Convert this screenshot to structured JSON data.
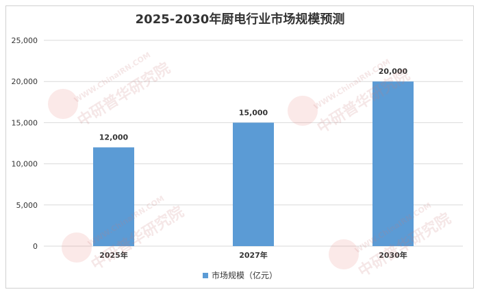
{
  "chart_data": {
    "type": "bar",
    "title": "2025-2030年厨电行业市场规模预测",
    "categories": [
      "2025年",
      "2027年",
      "2030年"
    ],
    "series": [
      {
        "name": "市场规模（亿元）",
        "values": [
          12000,
          15000,
          20000
        ],
        "color": "#5b9bd5"
      }
    ],
    "data_labels": [
      "12,000",
      "15,000",
      "20,000"
    ],
    "yticks": [
      "0",
      "5,000",
      "10,000",
      "15,000",
      "20,000",
      "25,000"
    ],
    "ylim": [
      0,
      25000
    ],
    "grid": true,
    "legend_position": "bottom"
  },
  "watermark": {
    "brand": "中研普华研究院",
    "logo": "CIRN",
    "url": "WWW.ChinaIRN.COM"
  }
}
